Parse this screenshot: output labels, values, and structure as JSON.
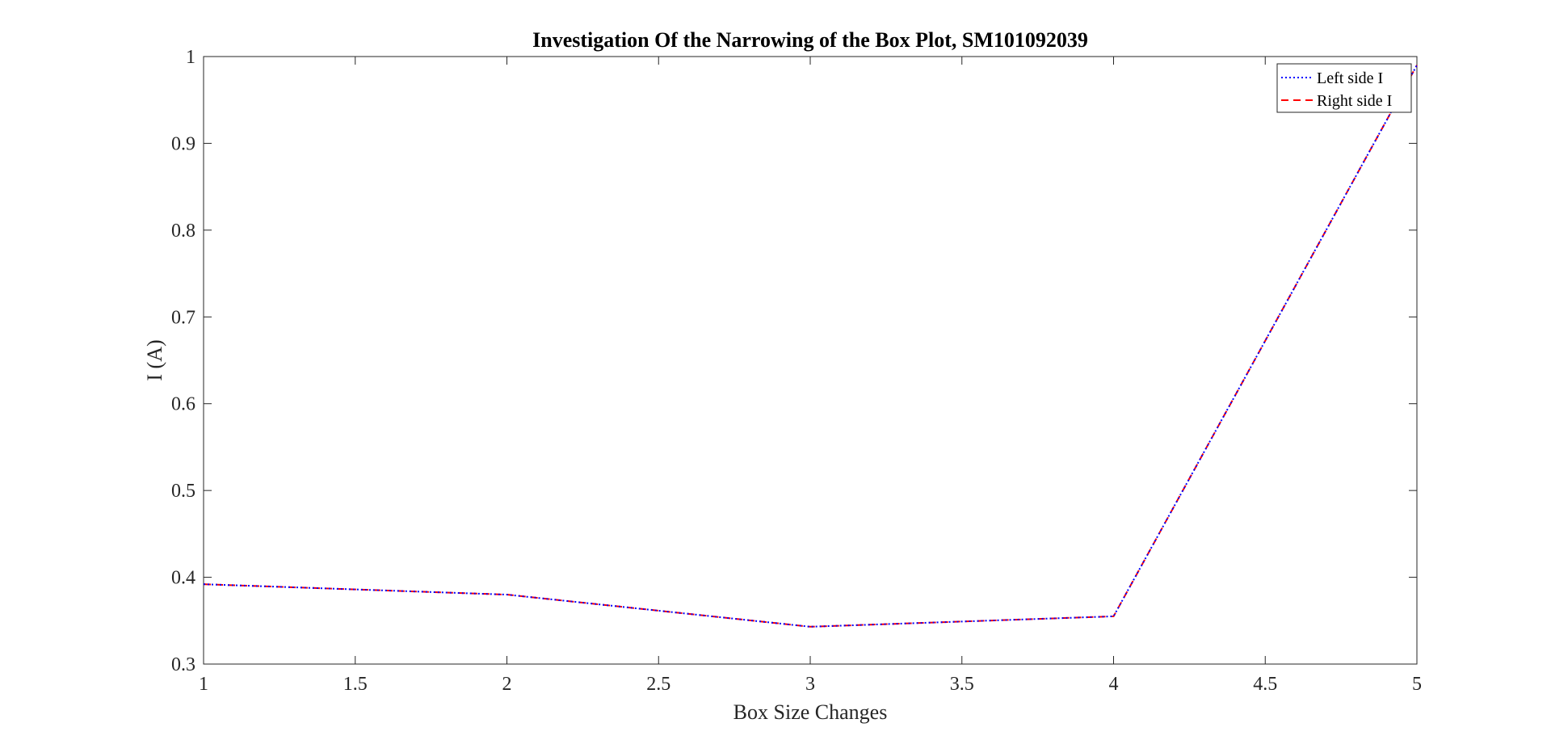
{
  "chart_data": {
    "type": "line",
    "title": "Investigation Of the Narrowing of the Box Plot, SM101092039",
    "xlabel": "Box Size Changes",
    "ylabel": "I (A)",
    "xlim": [
      1,
      5
    ],
    "ylim": [
      0.3,
      1
    ],
    "xticks": [
      "1",
      "1.5",
      "2",
      "2.5",
      "3",
      "3.5",
      "4",
      "4.5",
      "5"
    ],
    "yticks": [
      "0.3",
      "0.4",
      "0.5",
      "0.6",
      "0.7",
      "0.8",
      "0.9",
      "1"
    ],
    "grid": false,
    "legend_position": "top-right",
    "x": [
      1,
      2,
      3,
      4,
      5
    ],
    "series": [
      {
        "name": "Left side I",
        "values": [
          0.392,
          0.38,
          0.343,
          0.355,
          0.99
        ],
        "color": "#0000ff",
        "style": "dotted"
      },
      {
        "name": "Right side I",
        "values": [
          0.392,
          0.38,
          0.343,
          0.355,
          0.99
        ],
        "color": "#ff0000",
        "style": "dashed"
      }
    ]
  }
}
